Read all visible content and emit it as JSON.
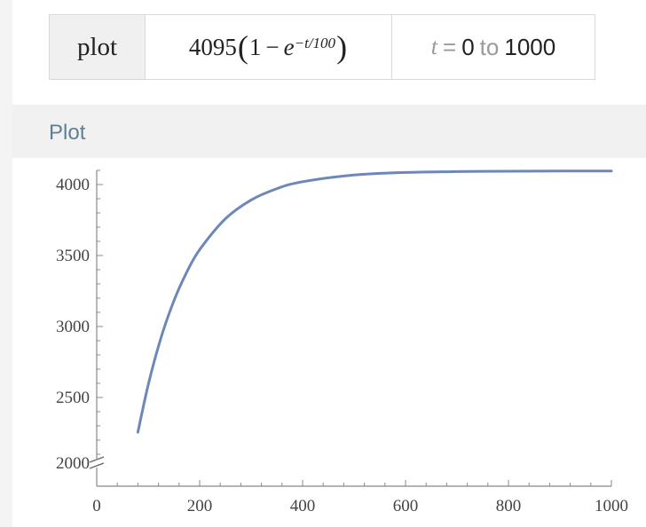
{
  "query": {
    "command": "plot",
    "expr": {
      "coef": "4095",
      "one": "1",
      "minus": "−",
      "base": "e",
      "exponent": "−t/100"
    },
    "range": {
      "var": "t",
      "eq": "=",
      "from": "0",
      "to_word": "to",
      "to": "1000"
    }
  },
  "pod": {
    "title": "Plot"
  },
  "chart_data": {
    "type": "line",
    "function": "4095*(1 - exp(-t/100))",
    "xlim": [
      0,
      1000
    ],
    "ylim": [
      2000,
      4100
    ],
    "y_axis_break": true,
    "x_ticks": [
      0,
      200,
      400,
      600,
      800,
      1000
    ],
    "y_ticks": [
      2000,
      2500,
      3000,
      3500,
      4000
    ],
    "x_tick_labels": [
      "0",
      "200",
      "400",
      "600",
      "800",
      "1000"
    ],
    "y_tick_labels": [
      "2000",
      "2500",
      "3000",
      "3500",
      "4000"
    ],
    "series": [
      {
        "color": "#6d87b8",
        "x": [
          80,
          100,
          125,
          150,
          175,
          200,
          250,
          300,
          350,
          400,
          500,
          600,
          700,
          800,
          900,
          1000
        ],
        "values": [
          2255,
          2588,
          2922,
          3181,
          3383,
          3541,
          3759,
          3891,
          3971,
          4020,
          4067,
          4085,
          4091,
          4094,
          4095,
          4095
        ]
      }
    ],
    "grid": false
  }
}
